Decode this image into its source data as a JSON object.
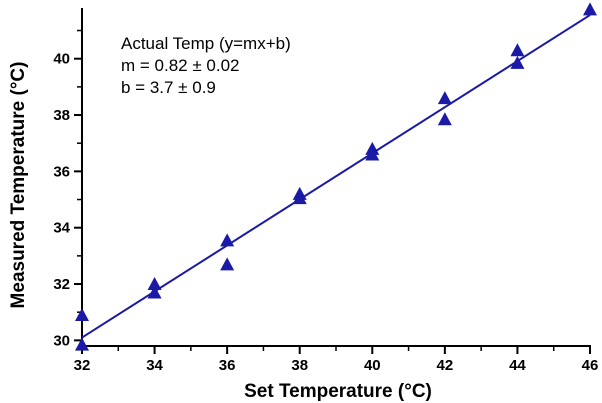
{
  "chart_data": {
    "type": "scatter",
    "title": "",
    "xlabel": "Set Temperature (°C)",
    "ylabel": "Measured Temperature (°C)",
    "xlim": [
      32,
      46
    ],
    "ylim": [
      29.8,
      41.8
    ],
    "xticks": [
      32,
      34,
      36,
      38,
      40,
      42,
      44,
      46
    ],
    "yticks": [
      30,
      32,
      34,
      36,
      38,
      40
    ],
    "grid": false,
    "series": [
      {
        "marker": "triangle",
        "color": "#1a1aa6",
        "points": [
          {
            "x": 32,
            "y": 30.9
          },
          {
            "x": 32,
            "y": 29.85
          },
          {
            "x": 34,
            "y": 32.0
          },
          {
            "x": 34,
            "y": 31.7
          },
          {
            "x": 36,
            "y": 33.55
          },
          {
            "x": 36,
            "y": 32.7
          },
          {
            "x": 38,
            "y": 35.2
          },
          {
            "x": 38,
            "y": 35.05
          },
          {
            "x": 40,
            "y": 36.8
          },
          {
            "x": 40,
            "y": 36.6
          },
          {
            "x": 42,
            "y": 38.6
          },
          {
            "x": 42,
            "y": 37.85
          },
          {
            "x": 44,
            "y": 40.3
          },
          {
            "x": 44,
            "y": 39.85
          },
          {
            "x": 46,
            "y": 41.75
          }
        ]
      }
    ],
    "fit_line": {
      "color": "#1a1aa6",
      "from": {
        "x": 32,
        "y": 30.1
      },
      "to": {
        "x": 46,
        "y": 41.55
      }
    },
    "annotation": {
      "lines": [
        "Actual Temp (y=mx+b)",
        "m = 0.82 ± 0.02",
        "b  = 3.7 ± 0.9"
      ],
      "position": "top-left"
    }
  }
}
